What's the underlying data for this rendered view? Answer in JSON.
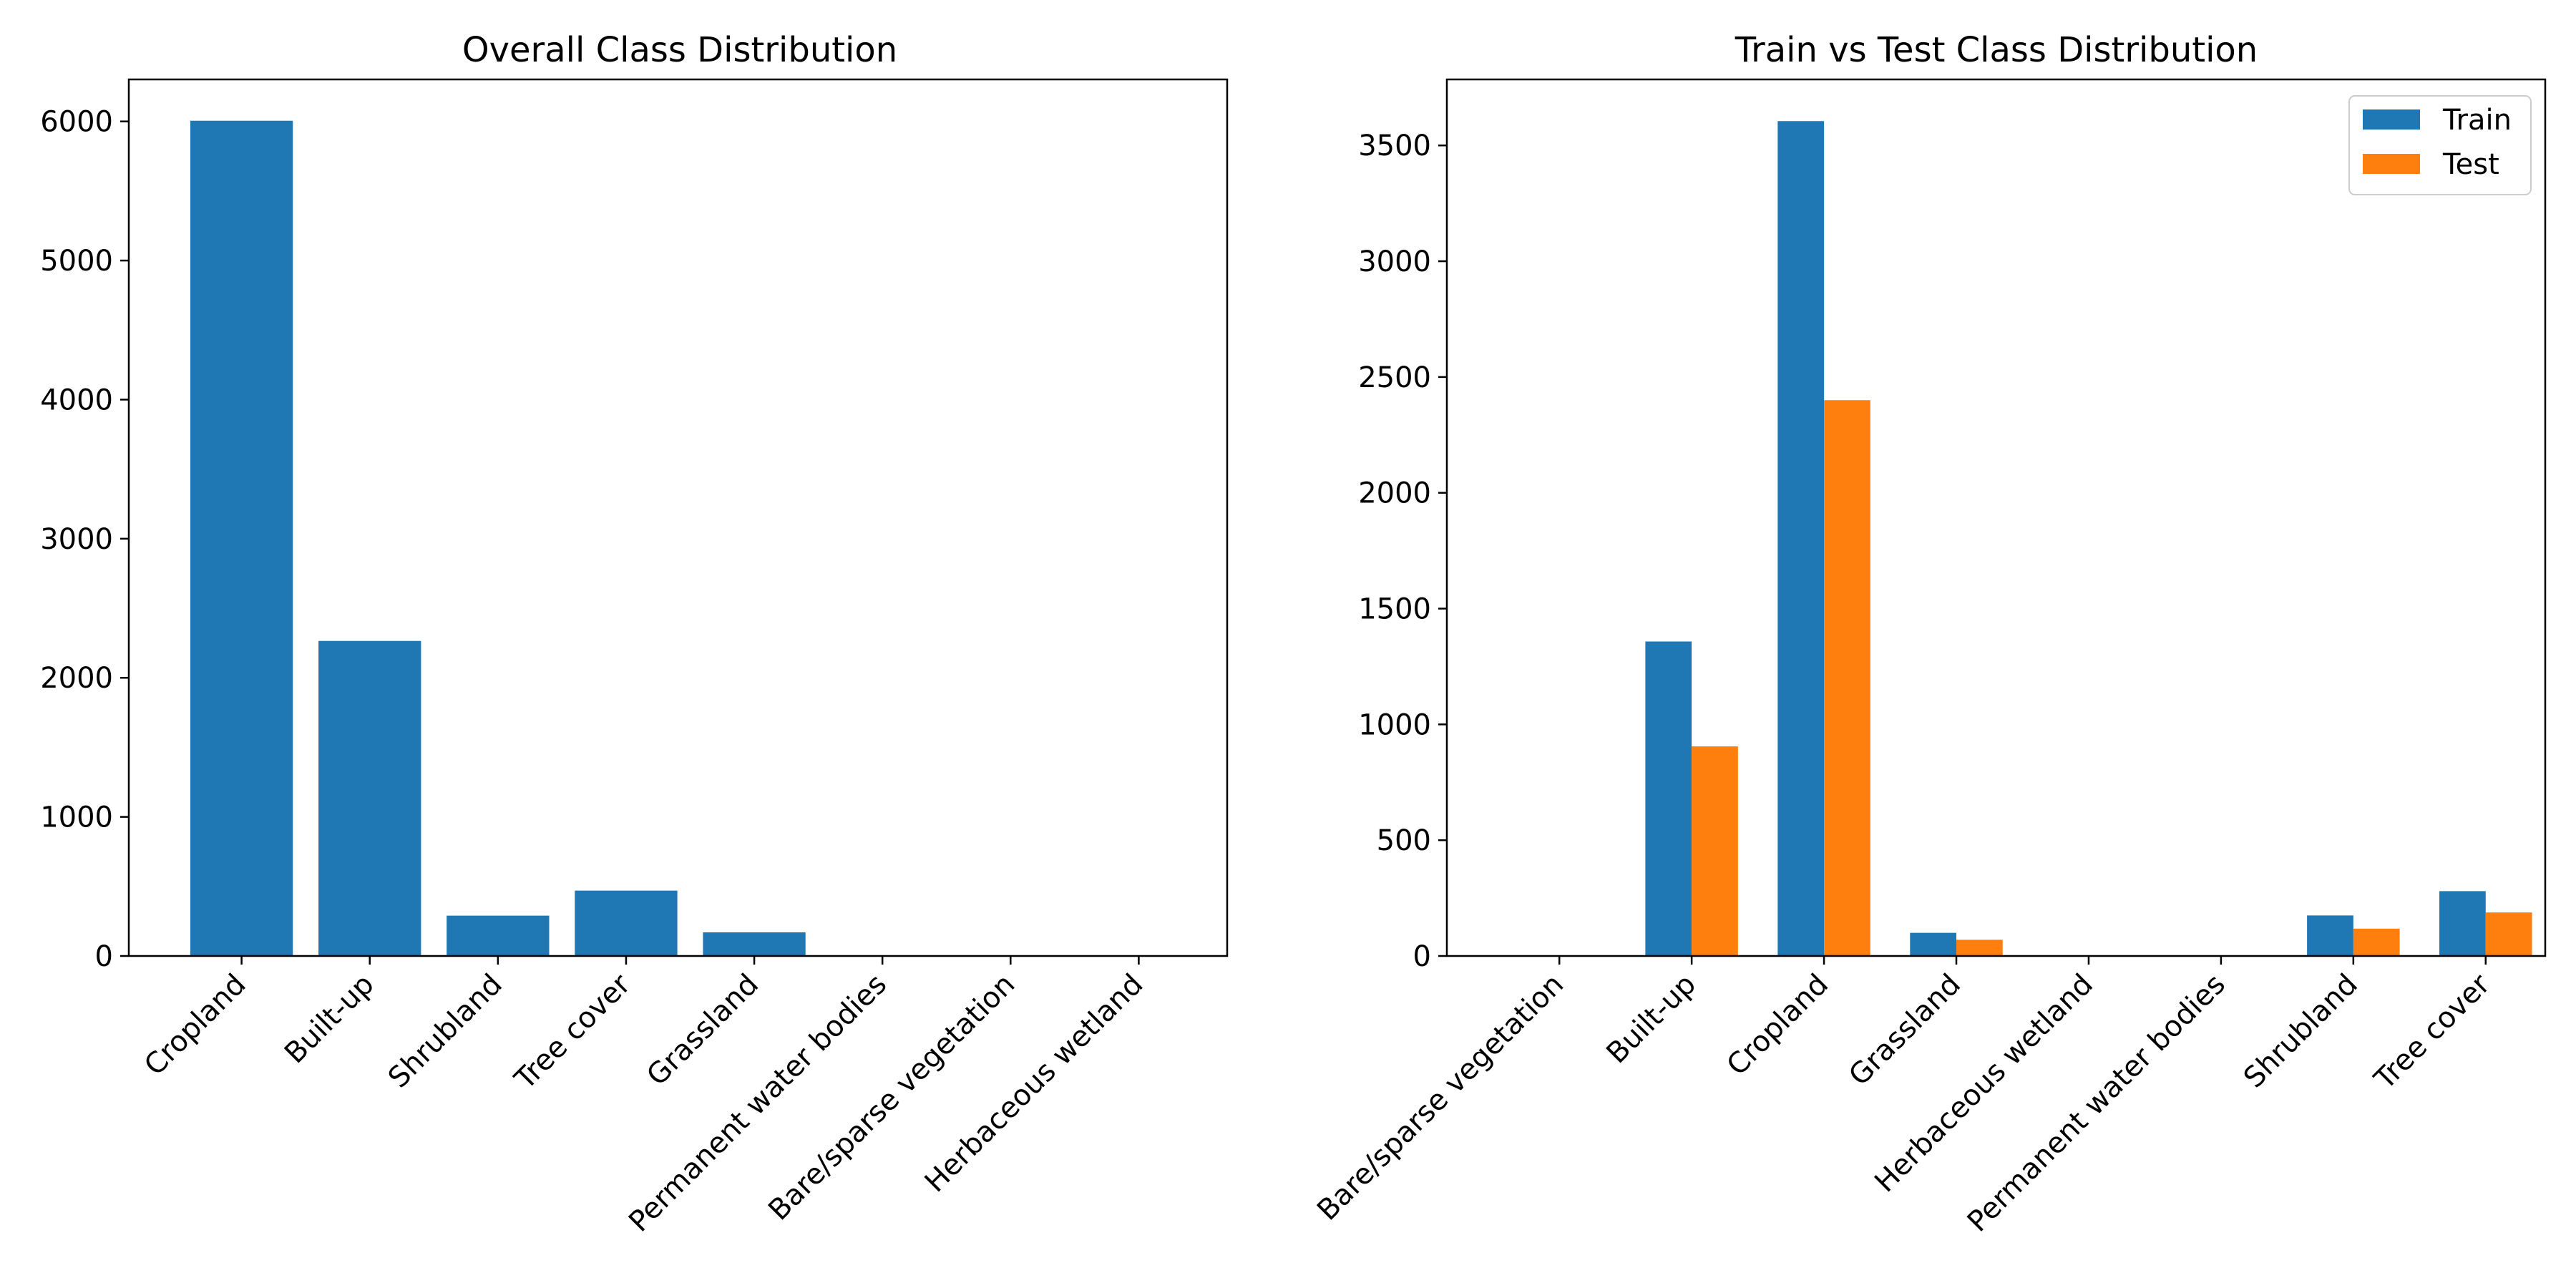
{
  "chart_data": [
    {
      "type": "bar",
      "title": "Overall Class Distribution",
      "xlabel": "",
      "ylabel": "",
      "categories": [
        "Cropland",
        "Built-up",
        "Shrubland",
        "Tree cover",
        "Grassland",
        "Permanent water bodies",
        "Bare/sparse vegetation",
        "Herbaceous wetland"
      ],
      "series": [
        {
          "values": [
            6005,
            2265,
            290,
            470,
            170,
            0,
            0,
            0
          ],
          "color": "#1f77b4"
        }
      ],
      "ylim": [
        0,
        6302
      ],
      "yticks": [
        0,
        1000,
        2000,
        3000,
        4000,
        5000,
        6000
      ],
      "grid": false,
      "legend": "none"
    },
    {
      "type": "bar",
      "title": "Train vs Test Class Distribution",
      "xlabel": "",
      "ylabel": "",
      "categories": [
        "Bare/sparse vegetation",
        "Built-up",
        "Cropland",
        "Grassland",
        "Herbaceous wetland",
        "Permanent water bodies",
        "Shrubland",
        "Tree cover"
      ],
      "series": [
        {
          "name": "Train",
          "values": [
            0,
            1358,
            3605,
            100,
            0,
            0,
            175,
            280
          ],
          "color": "#1f77b4"
        },
        {
          "name": "Test",
          "values": [
            0,
            905,
            2400,
            70,
            0,
            0,
            118,
            188
          ],
          "color": "#ff7f0e"
        }
      ],
      "ylim": [
        0,
        3785
      ],
      "yticks": [
        0,
        500,
        1000,
        1500,
        2000,
        2500,
        3000,
        3500
      ],
      "grid": false,
      "legend": "top-right"
    }
  ]
}
